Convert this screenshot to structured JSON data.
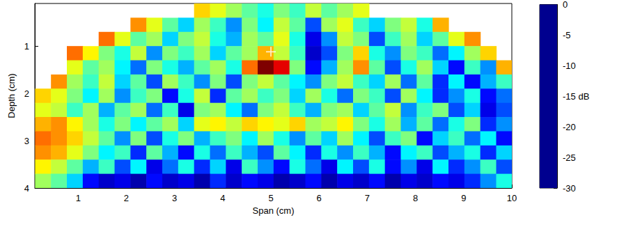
{
  "chart_data": {
    "type": "heatmap",
    "xlabel": "Span (cm)",
    "ylabel": "Depth (cm)",
    "xlim": [
      0.1,
      10
    ],
    "ylim": [
      0.1,
      4
    ],
    "xticks": [
      1,
      2,
      3,
      4,
      5,
      6,
      7,
      8,
      9,
      10
    ],
    "yticks": [
      1,
      2,
      3,
      4
    ],
    "x": [
      0.27,
      0.6,
      0.93,
      1.26,
      1.59,
      1.92,
      2.25,
      2.58,
      2.91,
      3.24,
      3.57,
      3.9,
      4.23,
      4.56,
      4.89,
      5.22,
      5.55,
      5.88,
      6.21,
      6.54,
      6.87,
      7.2,
      7.53,
      7.86,
      8.19,
      8.52,
      8.85,
      9.18,
      9.51,
      9.84
    ],
    "y": [
      0.25,
      0.55,
      0.85,
      1.15,
      1.45,
      1.75,
      2.05,
      2.35,
      2.65,
      2.95,
      3.25,
      3.55,
      3.85
    ],
    "z": [
      [
        null,
        null,
        null,
        null,
        null,
        null,
        null,
        null,
        null,
        null,
        -10,
        -12,
        -14,
        -16,
        -18,
        -15,
        -17,
        -13,
        -16,
        -14,
        -12,
        null,
        null,
        null,
        null,
        null,
        null,
        null,
        null,
        null
      ],
      [
        null,
        null,
        null,
        null,
        null,
        null,
        -8,
        -12,
        -16,
        -20,
        -14,
        -17,
        -22,
        -15,
        -19,
        -13,
        -16,
        -24,
        -14,
        -12,
        -17,
        -20,
        -15,
        -13,
        -18,
        -9,
        null,
        null,
        null,
        null
      ],
      [
        null,
        null,
        null,
        null,
        -7,
        -12,
        -16,
        -14,
        -20,
        -15,
        -13,
        -18,
        -21,
        -14,
        -16,
        -12,
        -18,
        -27,
        -22,
        -13,
        -15,
        -24,
        -17,
        -14,
        -20,
        -16,
        -12,
        -8,
        null,
        null
      ],
      [
        null,
        null,
        -7,
        -11,
        -15,
        -18,
        -13,
        -22,
        -15,
        -17,
        -14,
        -20,
        -16,
        -14,
        -9,
        -13,
        -17,
        -28,
        -24,
        -15,
        -10,
        -18,
        -22,
        -15,
        -17,
        -23,
        -19,
        -14,
        -10,
        null
      ],
      [
        null,
        null,
        -12,
        -16,
        -14,
        -19,
        -23,
        -15,
        -18,
        -21,
        -16,
        -14,
        -18,
        -7,
        0,
        -3,
        -15,
        -26,
        -21,
        -14,
        -8,
        -16,
        -24,
        -18,
        -14,
        -20,
        -26,
        -17,
        -22,
        -9
      ],
      [
        null,
        -8,
        -14,
        -17,
        -13,
        -20,
        -16,
        -24,
        -14,
        -17,
        -22,
        -15,
        -24,
        -15,
        -13,
        -16,
        -19,
        -22,
        -15,
        -13,
        -17,
        -20,
        -14,
        -23,
        -16,
        -25,
        -19,
        -26,
        -21,
        -17
      ],
      [
        -10,
        -12,
        -15,
        -19,
        -14,
        -22,
        -17,
        -15,
        -26,
        -18,
        -13,
        -25,
        -16,
        -14,
        -17,
        -15,
        -20,
        -14,
        -18,
        -23,
        -15,
        -17,
        -24,
        -14,
        -19,
        -25,
        -22,
        -18,
        -26,
        -23
      ],
      [
        -12,
        -13,
        -17,
        -14,
        -21,
        -16,
        -14,
        -23,
        -17,
        -27,
        -15,
        -14,
        -19,
        -23,
        -15,
        -13,
        -17,
        -21,
        -15,
        -14,
        -20,
        -16,
        -13,
        -22,
        -17,
        -15,
        -24,
        -20,
        -27,
        -24
      ],
      [
        -9,
        -8,
        -11,
        -14,
        -18,
        -15,
        -19,
        -16,
        -14,
        -20,
        -12,
        -11,
        -13,
        -10,
        -11,
        -12,
        -10,
        -14,
        -13,
        -11,
        -15,
        -18,
        -14,
        -21,
        -16,
        -23,
        -18,
        -15,
        -25,
        -22
      ],
      [
        -7,
        -8,
        -10,
        -13,
        -16,
        -22,
        -15,
        -24,
        -18,
        -15,
        -21,
        -17,
        -15,
        -19,
        -14,
        -18,
        -22,
        -16,
        -20,
        -14,
        -19,
        -24,
        -17,
        -15,
        -26,
        -20,
        -17,
        -23,
        -19,
        -26
      ],
      [
        -8,
        -9,
        -12,
        -15,
        -19,
        -17,
        -25,
        -16,
        -21,
        -26,
        -18,
        -23,
        -17,
        -21,
        -24,
        -16,
        -19,
        -25,
        -18,
        -22,
        -17,
        -21,
        -26,
        -19,
        -17,
        -24,
        -21,
        -18,
        -25,
        -20
      ],
      [
        -11,
        -13,
        -16,
        -21,
        -17,
        -24,
        -19,
        -27,
        -23,
        -18,
        -25,
        -20,
        -27,
        -17,
        -22,
        -26,
        -18,
        -23,
        -27,
        -19,
        -24,
        -18,
        -26,
        -22,
        -27,
        -19,
        -25,
        -22,
        -17,
        -24
      ],
      [
        -14,
        -16,
        -20,
        -26,
        -28,
        -27,
        -29,
        -26,
        -28,
        -27,
        -29,
        -25,
        -28,
        -26,
        -27,
        -29,
        -28,
        -26,
        -29,
        -27,
        -28,
        -26,
        -29,
        -27,
        -28,
        -26,
        -27,
        -25,
        -22,
        -18
      ]
    ],
    "colorbar": {
      "range": [
        -30,
        0
      ],
      "ticks": [
        0,
        -5,
        -10,
        {
          "value": -15,
          "label": "-15 dB"
        },
        -20,
        -25,
        -30
      ]
    },
    "series": [
      {
        "type": "scatter",
        "x": [
          5.0
        ],
        "y": [
          1.12
        ],
        "marker": "cross",
        "color": "#ffffff"
      }
    ]
  }
}
